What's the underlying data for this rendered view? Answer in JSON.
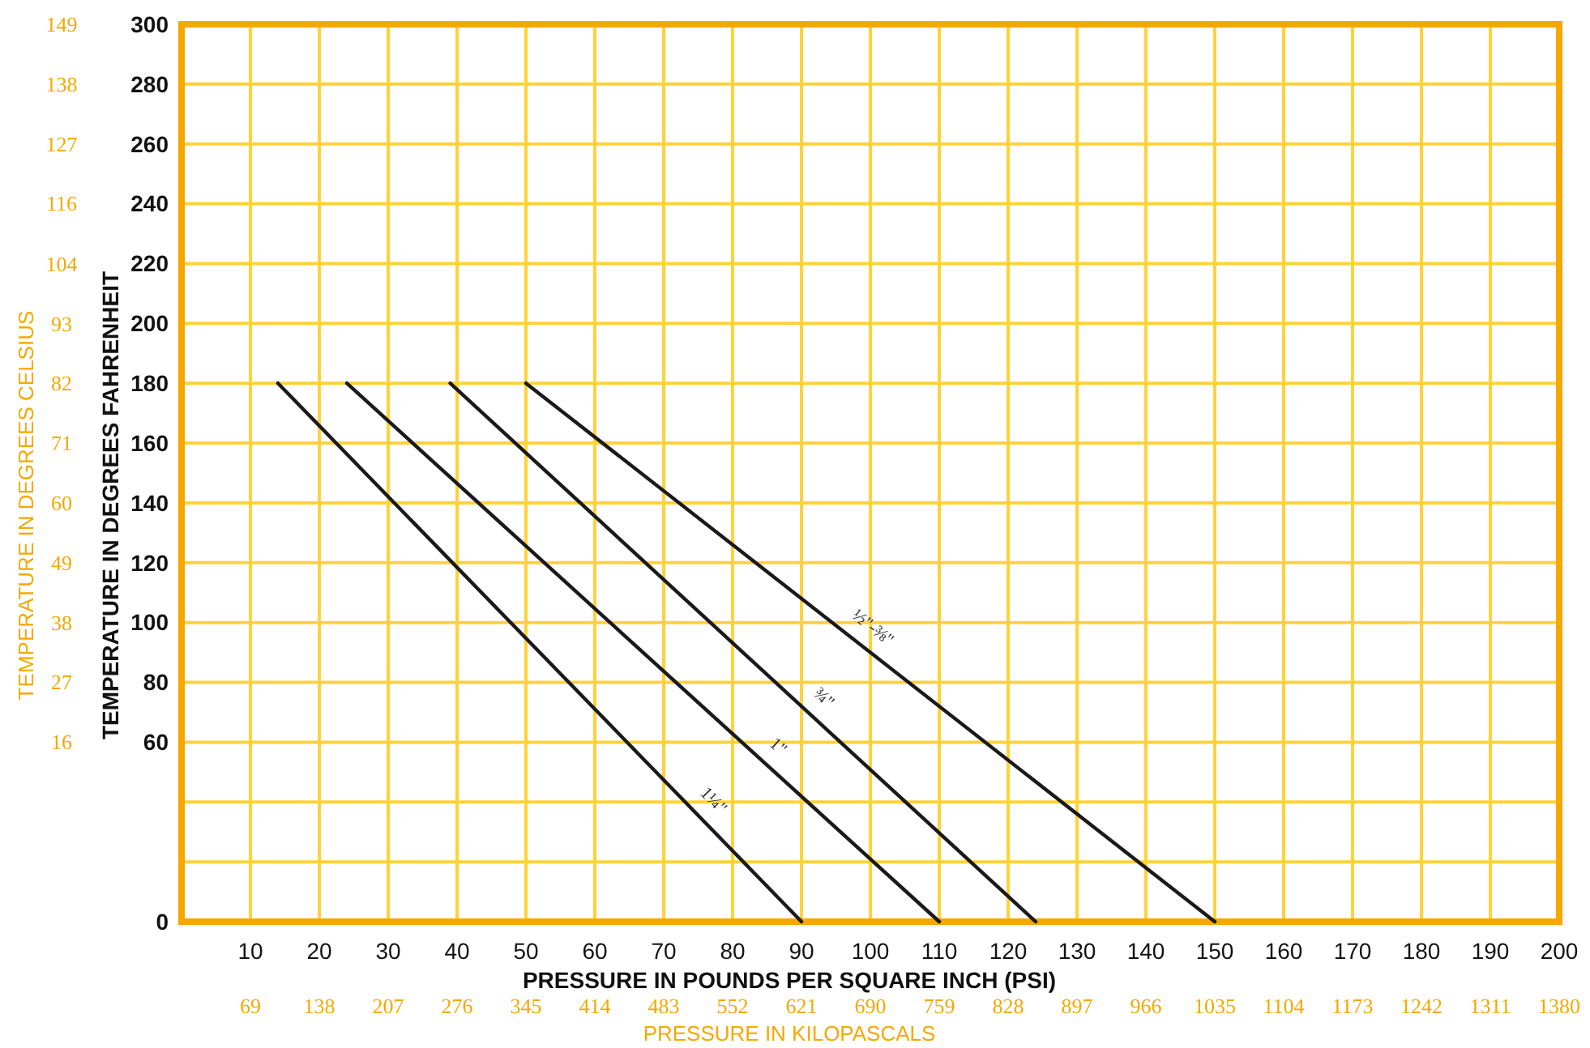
{
  "chart_data": {
    "type": "line",
    "xlabel": "PRESSURE IN POUNDS PER SQUARE INCH (PSI)",
    "ylabel": "TEMPERATURE IN DEGREES FAHRENHEIT",
    "y2label": "TEMPERATURE IN DEGREES CELSIUS",
    "x2label": "PRESSURE IN KILOPASCALS",
    "xlim": [
      0,
      200
    ],
    "xticks": [
      10,
      20,
      30,
      40,
      50,
      60,
      70,
      80,
      90,
      100,
      110,
      120,
      130,
      140,
      150,
      160,
      170,
      180,
      190,
      200
    ],
    "ylim": [
      0,
      300
    ],
    "yticks": [
      0,
      {
        "value": 20,
        "label": null
      },
      {
        "value": 40,
        "label": null
      },
      60,
      80,
      100,
      120,
      140,
      160,
      180,
      200,
      220,
      240,
      260,
      280,
      300
    ],
    "y2lim": [
      -17.8,
      148.9
    ],
    "y2ticks": [
      {
        "value": 15.6,
        "label": "16"
      },
      {
        "value": 26.7,
        "label": "27"
      },
      {
        "value": 37.8,
        "label": "38"
      },
      {
        "value": 48.9,
        "label": "49"
      },
      60,
      {
        "value": 71.1,
        "label": "71"
      },
      {
        "value": 82.2,
        "label": "82"
      },
      {
        "value": 93.3,
        "label": "93"
      },
      {
        "value": 104.4,
        "label": "104"
      },
      {
        "value": 115.6,
        "label": "116"
      },
      {
        "value": 126.7,
        "label": "127"
      },
      {
        "value": 137.8,
        "label": "138"
      },
      {
        "value": 148.9,
        "label": "149"
      }
    ],
    "x2lim": [
      0,
      1380
    ],
    "x2ticks": [
      69,
      138,
      207,
      276,
      345,
      414,
      483,
      552,
      621,
      690,
      759,
      828,
      897,
      966,
      1035,
      1104,
      1173,
      1242,
      1311,
      1380
    ],
    "grid": true,
    "marker": "none",
    "line_style": "solid",
    "series": [
      {
        "name": "1¼\"",
        "color": "#1a1a1a",
        "x": [
          14,
          90
        ],
        "values": [
          180,
          0
        ]
      },
      {
        "name": "1\"",
        "color": "#1a1a1a",
        "x": [
          24,
          110
        ],
        "values": [
          180,
          0
        ]
      },
      {
        "name": "¾\"",
        "color": "#1a1a1a",
        "x": [
          39,
          124
        ],
        "values": [
          180,
          0
        ]
      },
      {
        "name": "½\"-⅜\"",
        "color": "#1a1a1a",
        "x": [
          50,
          150
        ],
        "values": [
          180,
          0
        ]
      }
    ]
  }
}
